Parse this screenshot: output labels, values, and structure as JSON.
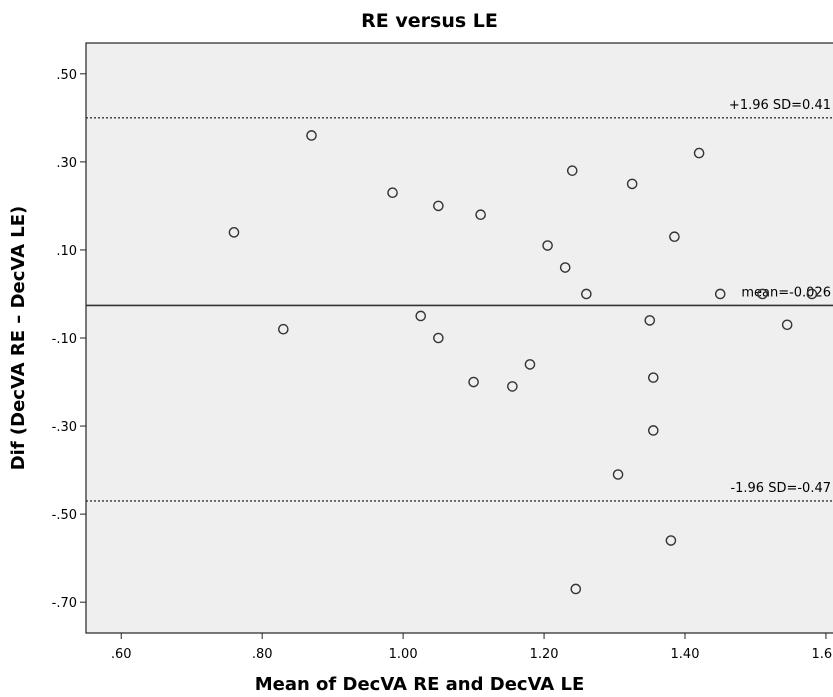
{
  "chart_data": {
    "type": "scatter",
    "title": "RE versus LE",
    "xlabel": "Mean of DecVA RE and DecVA LE",
    "ylabel": "Dif (DecVA RE – DecVA LE)",
    "xlim": [
      0.55,
      1.61
    ],
    "ylim": [
      -0.77,
      0.57
    ],
    "x_ticks": [
      0.6,
      0.8,
      1.0,
      1.2,
      1.4,
      1.6
    ],
    "x_tick_labels": [
      ".60",
      ".80",
      "1.00",
      "1.20",
      "1.40",
      "1.60"
    ],
    "y_ticks": [
      0.5,
      0.3,
      0.1,
      -0.1,
      -0.3,
      -0.5,
      -0.7
    ],
    "y_tick_labels": [
      ".50",
      ".30",
      ".10",
      "-.10",
      "-.30",
      "-.50",
      "-.70"
    ],
    "grid": false,
    "reference_lines": [
      {
        "y": 0.4,
        "style": "dotted",
        "label": "+1.96 SD=0.41"
      },
      {
        "y": -0.026,
        "style": "solid",
        "label": "mean=-0.026"
      },
      {
        "y": -0.47,
        "style": "dotted",
        "label": "-1.96 SD=-0.47"
      }
    ],
    "points": [
      {
        "x": 0.76,
        "y": 0.14
      },
      {
        "x": 0.83,
        "y": -0.08
      },
      {
        "x": 0.87,
        "y": 0.36
      },
      {
        "x": 0.985,
        "y": 0.23
      },
      {
        "x": 1.025,
        "y": -0.05
      },
      {
        "x": 1.05,
        "y": 0.2
      },
      {
        "x": 1.05,
        "y": -0.1
      },
      {
        "x": 1.1,
        "y": -0.2
      },
      {
        "x": 1.11,
        "y": 0.18
      },
      {
        "x": 1.155,
        "y": -0.21
      },
      {
        "x": 1.18,
        "y": -0.16
      },
      {
        "x": 1.205,
        "y": 0.11
      },
      {
        "x": 1.23,
        "y": 0.06
      },
      {
        "x": 1.24,
        "y": 0.28
      },
      {
        "x": 1.245,
        "y": -0.67
      },
      {
        "x": 1.26,
        "y": 0.0
      },
      {
        "x": 1.305,
        "y": -0.41
      },
      {
        "x": 1.325,
        "y": 0.25
      },
      {
        "x": 1.35,
        "y": -0.06
      },
      {
        "x": 1.355,
        "y": -0.19
      },
      {
        "x": 1.355,
        "y": -0.31
      },
      {
        "x": 1.38,
        "y": -0.56
      },
      {
        "x": 1.385,
        "y": 0.13
      },
      {
        "x": 1.42,
        "y": 0.32
      },
      {
        "x": 1.45,
        "y": 0.0
      },
      {
        "x": 1.51,
        "y": 0.0
      },
      {
        "x": 1.545,
        "y": -0.07
      },
      {
        "x": 1.58,
        "y": 0.0
      }
    ],
    "colors": {
      "plot_background": "#efefef",
      "marker_stroke": "#333333",
      "line": "#333333"
    }
  }
}
